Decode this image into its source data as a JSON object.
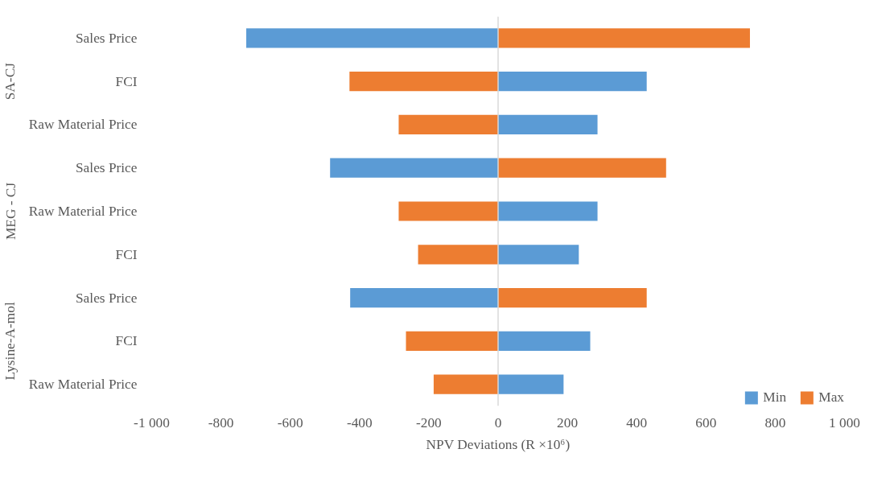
{
  "chart_data": {
    "type": "bar",
    "orientation": "horizontal",
    "categories": [
      "Sales Price",
      "FCI",
      "Raw Material Price",
      "Sales Price",
      "Raw Material Price",
      "FCI",
      "Sales Price",
      "FCI",
      "Raw Material Price"
    ],
    "series": [
      {
        "name": "Min",
        "color": "#5b9bd5",
        "values": [
          -727,
          429,
          287,
          -485,
          287,
          233,
          -427,
          266,
          189
        ]
      },
      {
        "name": "Max",
        "color": "#ed7d31",
        "values": [
          727,
          -429,
          -287,
          485,
          -287,
          -231,
          429,
          -266,
          -186
        ]
      }
    ],
    "xlabel": "NPV Deviations (R ×10⁶)",
    "xlim": [
      -1000,
      1000
    ],
    "xticks": [
      {
        "value": -1000,
        "label": "-1 000"
      },
      -800,
      -600,
      -400,
      -200,
      0,
      200,
      400,
      600,
      800,
      {
        "value": 1000,
        "label": "1 000"
      }
    ],
    "annotations": [
      "SA-CJ",
      "MEG - CJ",
      "Lysine-A-mol"
    ],
    "ref_lines": [
      {
        "axis": "x",
        "value": 0,
        "color": "#d9d9d9"
      }
    ],
    "stacked": true,
    "legend": "bottom right",
    "grid": false
  }
}
